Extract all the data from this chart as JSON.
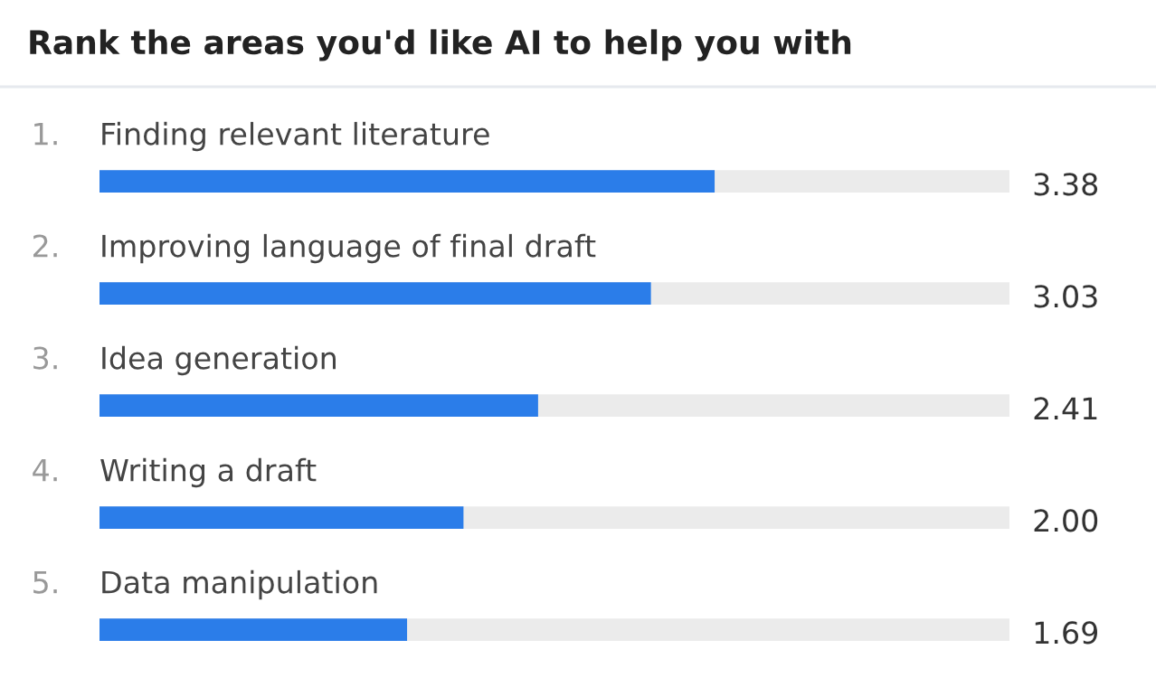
{
  "chart_data": {
    "type": "bar",
    "orientation": "horizontal",
    "title": "Rank the areas you'd like AI to help you with",
    "categories": [
      "Finding relevant literature",
      "Improving language of final draft",
      "Idea generation",
      "Writing a draft",
      "Data manipulation"
    ],
    "values": [
      3.38,
      3.03,
      2.41,
      2.0,
      1.69
    ],
    "value_labels": [
      "3.38",
      "3.03",
      "2.41",
      "2.00",
      "1.69"
    ],
    "annotations": [
      "1.",
      "2.",
      "3.",
      "4.",
      "5."
    ],
    "color": "#2b7de9",
    "xlim": [
      0,
      5
    ]
  }
}
